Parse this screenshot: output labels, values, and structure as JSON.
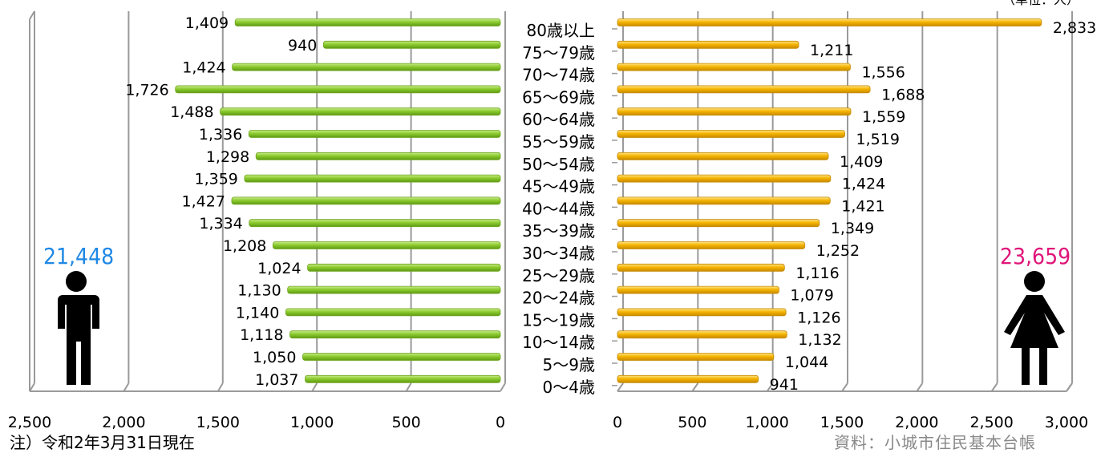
{
  "chart_data": [
    {
      "type": "bar",
      "series": [
        {
          "name": "",
          "values": [
            1409,
            940,
            1424,
            1726,
            1488,
            1336,
            1298,
            1359,
            1427,
            1334,
            1208,
            1024,
            1130,
            1140,
            1118,
            1050,
            1037
          ]
        }
      ],
      "categories": [
        "80歳以上",
        "75～79歳",
        "70～74歳",
        "65～69歳",
        "60～64歳",
        "55～59歳",
        "50～54歳",
        "45～49歳",
        "40～44歳",
        "35～39歳",
        "30～34歳",
        "25～29歳",
        "20～24歳",
        "15～19歳",
        "10～14歳",
        "5～9歳",
        "0～4歳"
      ],
      "xlim": [
        0,
        2500
      ],
      "xticks": [
        "2,500",
        "2,000",
        "1,500",
        "1,000",
        "500",
        "0"
      ],
      "total": "21,448",
      "orientation": "horizontal-reversed",
      "color": "#8CCB2E"
    },
    {
      "type": "bar",
      "series": [
        {
          "name": "",
          "values": [
            2833,
            1211,
            1556,
            1688,
            1559,
            1519,
            1409,
            1424,
            1421,
            1349,
            1252,
            1116,
            1079,
            1126,
            1132,
            1044,
            941
          ]
        }
      ],
      "categories": [
        "80歳以上",
        "75～79歳",
        "70～74歳",
        "65～69歳",
        "60～64歳",
        "55～59歳",
        "50～54歳",
        "45～49歳",
        "40～44歳",
        "35～39歳",
        "30～34歳",
        "25～29歳",
        "20～24歳",
        "15～19歳",
        "10～14歳",
        "5～9歳",
        "0～4歳"
      ],
      "xlim": [
        0,
        3000
      ],
      "xticks": [
        "0",
        "500",
        "1,000",
        "1,500",
        "2,000",
        "2,500",
        "3,000"
      ],
      "total": "23,659",
      "orientation": "horizontal",
      "color": "#F5B400"
    }
  ],
  "labels": {
    "note": "注）令和2年3月31日現在",
    "source": "資料：小城市住民基本台帳",
    "unit": "（単位：人）"
  },
  "colors": {
    "male_total": "#1E88E5",
    "female_total": "#E0157A",
    "male_bar": "#8CCB2E",
    "female_bar": "#F5B400"
  },
  "icons": {
    "male": "male-person-icon",
    "female": "female-person-icon"
  }
}
